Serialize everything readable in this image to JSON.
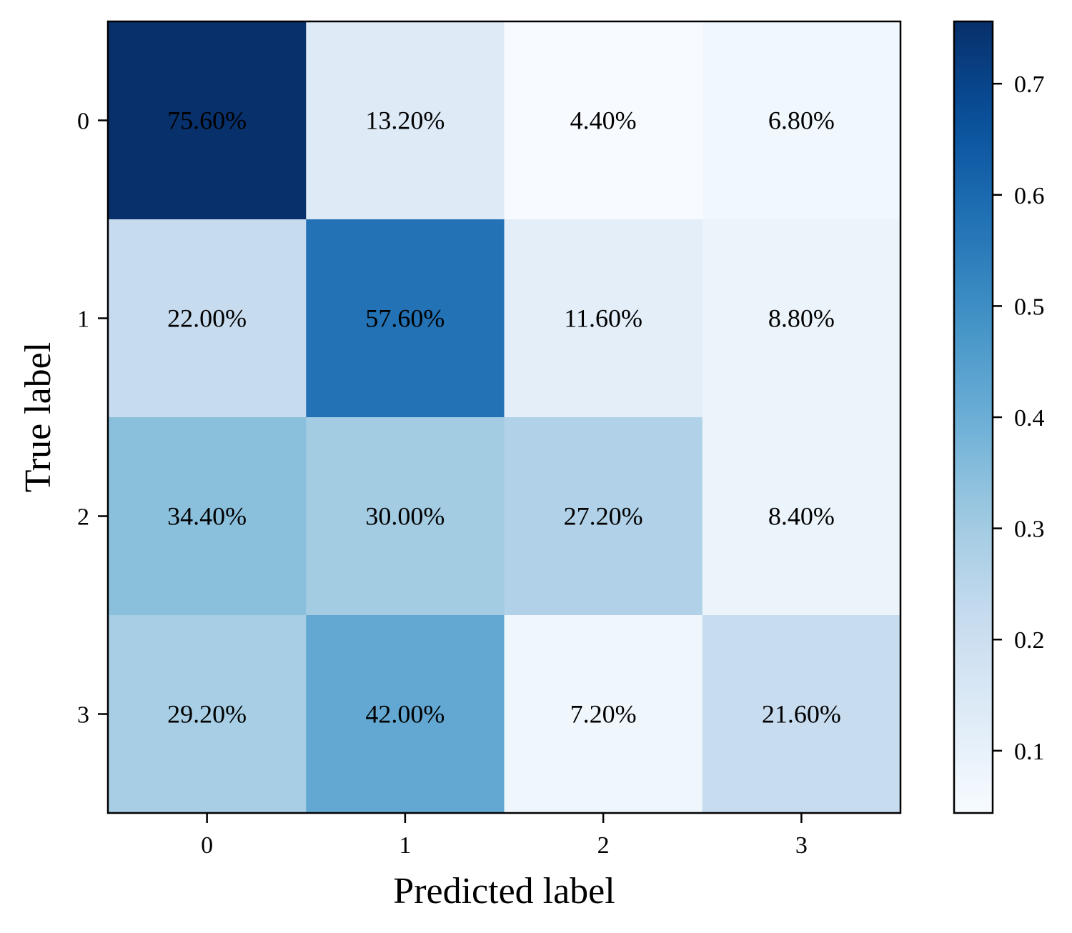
{
  "chart_data": {
    "type": "heatmap",
    "title": "",
    "xlabel": "Predicted label",
    "ylabel": "True label",
    "x_categories": [
      "0",
      "1",
      "2",
      "3"
    ],
    "y_categories": [
      "0",
      "1",
      "2",
      "3"
    ],
    "values": [
      [
        0.756,
        0.132,
        0.044,
        0.068
      ],
      [
        0.22,
        0.576,
        0.116,
        0.088
      ],
      [
        0.344,
        0.3,
        0.272,
        0.084
      ],
      [
        0.292,
        0.42,
        0.072,
        0.216
      ]
    ],
    "cell_labels": [
      [
        "75.60%",
        "13.20%",
        "4.40%",
        "6.80%"
      ],
      [
        "22.00%",
        "57.60%",
        "11.60%",
        "8.80%"
      ],
      [
        "34.40%",
        "30.00%",
        "27.20%",
        "8.40%"
      ],
      [
        "29.20%",
        "42.00%",
        "7.20%",
        "21.60%"
      ]
    ],
    "colormap": "Blues",
    "colorbar": {
      "range": [
        0.044,
        0.756
      ],
      "ticks": [
        0.1,
        0.2,
        0.3,
        0.4,
        0.5,
        0.6,
        0.7
      ],
      "tick_labels": [
        "0.1",
        "0.2",
        "0.3",
        "0.4",
        "0.5",
        "0.6",
        "0.7"
      ]
    },
    "grid": false,
    "legend": "colorbar-right"
  }
}
